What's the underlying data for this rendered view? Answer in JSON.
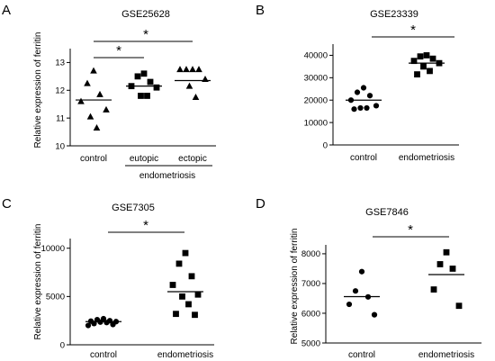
{
  "chart_data": [
    {
      "type": "scatter",
      "panel": "A",
      "title": "GSE25628",
      "ylabel": "Relative expression of ferritin",
      "ylim": [
        10,
        13.5
      ],
      "yticks": [
        "10",
        "11",
        "12",
        "13"
      ],
      "marker": "triangle-up",
      "categories": [
        "control",
        "eutopic",
        "ectopic"
      ],
      "group_label": "endometriosis",
      "significance": "*",
      "groups": [
        {
          "category": "control",
          "marker": "triangle-up",
          "values": [
            12.7,
            12.25,
            11.85,
            11.6,
            11.3,
            11.05,
            10.65
          ],
          "mean": 11.65
        },
        {
          "category": "eutopic",
          "marker": "square",
          "values": [
            12.6,
            12.5,
            12.3,
            12.15,
            12.1,
            11.8,
            11.8
          ],
          "mean": 12.15
        },
        {
          "category": "ectopic",
          "marker": "triangle-up",
          "values": [
            12.75,
            12.75,
            12.75,
            12.75,
            12.4,
            12.15,
            11.75
          ],
          "mean": 12.35
        }
      ]
    },
    {
      "type": "scatter",
      "panel": "B",
      "title": "GSE23339",
      "ylim": [
        0,
        45000
      ],
      "yticks": [
        "0",
        "10000",
        "20000",
        "30000",
        "40000"
      ],
      "categories": [
        "control",
        "endometriosis"
      ],
      "significance": "*",
      "groups": [
        {
          "category": "control",
          "marker": "circle",
          "values": [
            25500,
            23500,
            22000,
            20000,
            17500,
            16500,
            16500,
            16000
          ],
          "mean": 20000
        },
        {
          "category": "endometriosis",
          "marker": "square",
          "values": [
            40000,
            39500,
            38500,
            37500,
            36500,
            35000,
            33000,
            31500
          ],
          "mean": 36500
        }
      ]
    },
    {
      "type": "scatter",
      "panel": "C",
      "title": "GSE7305",
      "ylabel": "Relative expression of ferritin",
      "ylim": [
        0,
        11000
      ],
      "yticks": [
        "0",
        "5000",
        "10000"
      ],
      "categories": [
        "control",
        "endometriosis"
      ],
      "significance": "*",
      "groups": [
        {
          "category": "control",
          "marker": "circle",
          "values": [
            2700,
            2600,
            2500,
            2450,
            2400,
            2350,
            2300,
            2200,
            2100,
            2000
          ],
          "mean": 2400
        },
        {
          "category": "endometriosis",
          "marker": "square",
          "values": [
            9500,
            8400,
            7100,
            6200,
            5200,
            5000,
            4200,
            3200,
            3100
          ],
          "mean": 5500
        }
      ]
    },
    {
      "type": "scatter",
      "panel": "D",
      "title": "GSE7846",
      "ylabel": "Relative expression of ferritin",
      "ylim": [
        5000,
        8300
      ],
      "yticks": [
        "5000",
        "6000",
        "7000",
        "8000"
      ],
      "categories": [
        "control",
        "endometriosis"
      ],
      "significance": "*",
      "groups": [
        {
          "category": "control",
          "marker": "circle",
          "values": [
            7400,
            6750,
            6550,
            6300,
            5950
          ],
          "mean": 6560
        },
        {
          "category": "endometriosis",
          "marker": "square",
          "values": [
            8050,
            7650,
            7500,
            6800,
            6250
          ],
          "mean": 7300
        }
      ]
    }
  ]
}
